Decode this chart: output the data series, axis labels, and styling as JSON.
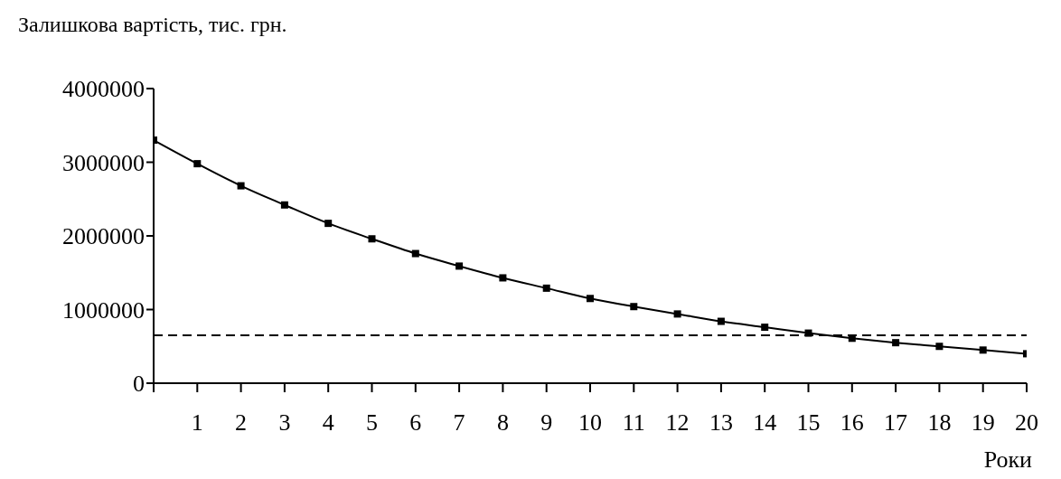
{
  "chart_data": {
    "type": "line",
    "title": "Залишкова вартість, тис. грн.",
    "xlabel": "Роки",
    "x": [
      0,
      1,
      2,
      3,
      4,
      5,
      6,
      7,
      8,
      9,
      10,
      11,
      12,
      13,
      14,
      15,
      16,
      17,
      18,
      19,
      20
    ],
    "series": [
      {
        "color": "#000000",
        "values": [
          3300000,
          2980000,
          2680000,
          2420000,
          2170000,
          1960000,
          1760000,
          1590000,
          1430000,
          1290000,
          1150000,
          1040000,
          940000,
          840000,
          760000,
          680000,
          610000,
          550000,
          500000,
          450000,
          400000
        ]
      }
    ],
    "xlim": [
      0,
      20
    ],
    "xticks": [
      {
        "value": 0,
        "label": null
      },
      1,
      2,
      3,
      4,
      5,
      6,
      7,
      8,
      9,
      10,
      11,
      12,
      13,
      14,
      15,
      16,
      17,
      18,
      19,
      20
    ],
    "ylim": [
      0,
      4000000
    ],
    "yticks": [
      0,
      1000000,
      2000000,
      3000000,
      4000000
    ],
    "ref_lines": [
      {
        "axis": "y",
        "value": 650000,
        "line_style": "dashed",
        "color": "#000000"
      }
    ],
    "marker": "square",
    "line_style": "solid",
    "grid": false,
    "legend": false
  }
}
